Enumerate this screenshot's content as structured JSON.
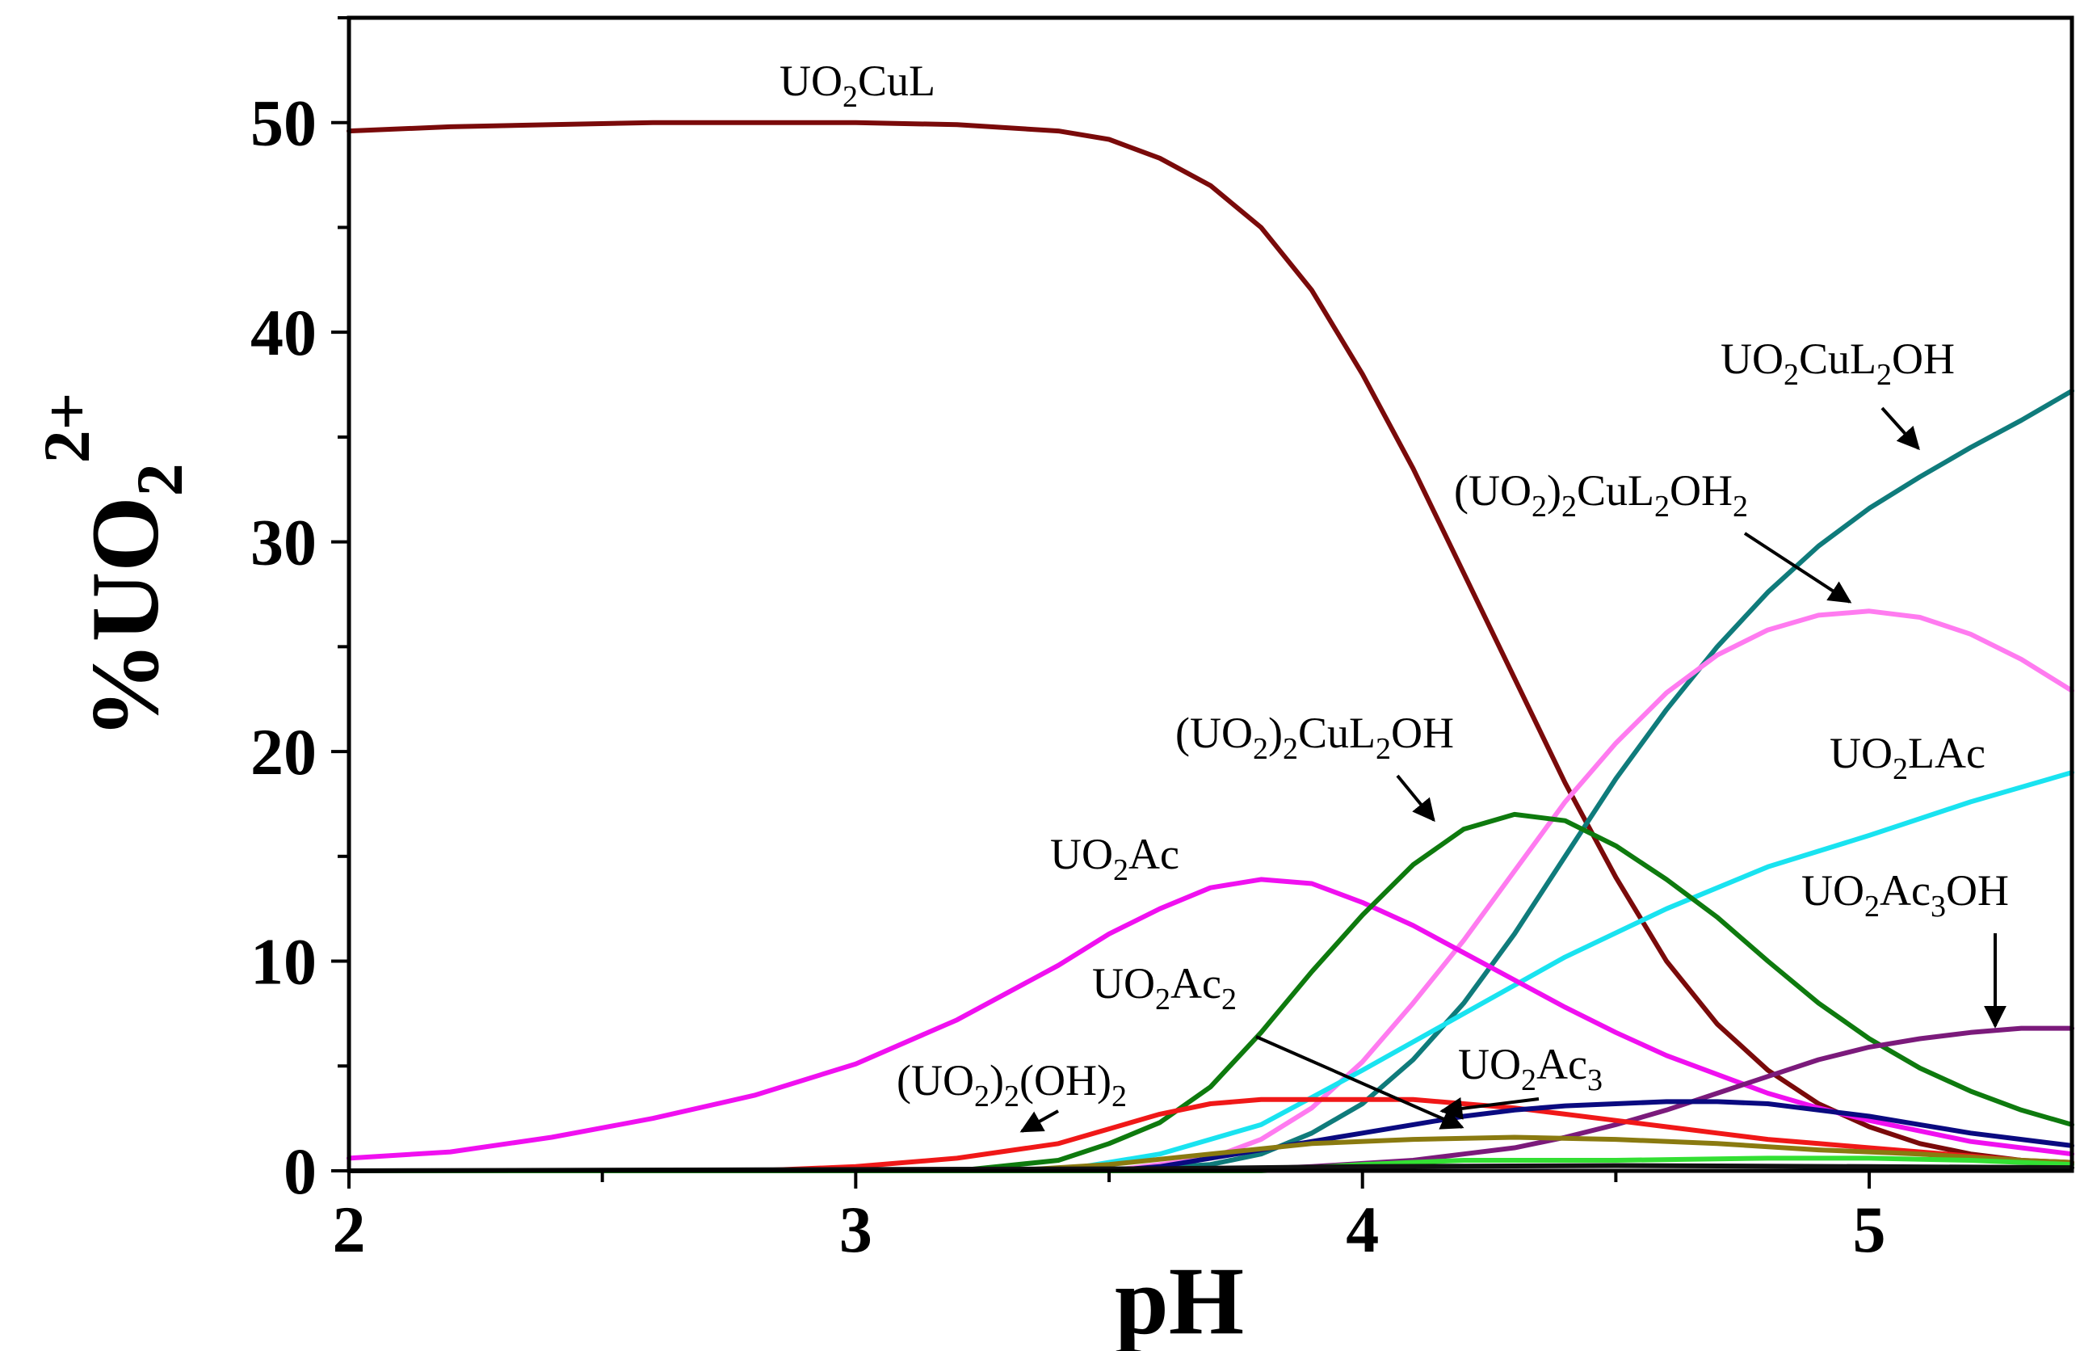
{
  "chart_data": {
    "type": "line",
    "xlabel": "pH",
    "ylabel": {
      "prefix": "%UO",
      "sub": "2",
      "sup": "2+"
    },
    "xlim": [
      2.0,
      5.4
    ],
    "ylim": [
      0,
      55
    ],
    "x_ticks": [
      2,
      3,
      4,
      5
    ],
    "y_ticks": [
      0,
      10,
      20,
      30,
      40,
      50
    ],
    "grid": false,
    "legend": "none",
    "series": [
      {
        "id": "uo2cul",
        "color": "#7a0a0a",
        "label": [
          [
            "UO",
            ""
          ],
          [
            "2",
            "sub"
          ],
          [
            "CuL",
            ""
          ]
        ],
        "points": [
          [
            2.0,
            49.6
          ],
          [
            2.2,
            49.8
          ],
          [
            2.4,
            49.9
          ],
          [
            2.6,
            50.0
          ],
          [
            2.8,
            50.0
          ],
          [
            3.0,
            50.0
          ],
          [
            3.2,
            49.9
          ],
          [
            3.4,
            49.6
          ],
          [
            3.5,
            49.2
          ],
          [
            3.6,
            48.3
          ],
          [
            3.7,
            47.0
          ],
          [
            3.8,
            45.0
          ],
          [
            3.9,
            42.0
          ],
          [
            4.0,
            38.0
          ],
          [
            4.1,
            33.5
          ],
          [
            4.2,
            28.5
          ],
          [
            4.3,
            23.5
          ],
          [
            4.4,
            18.5
          ],
          [
            4.5,
            14.0
          ],
          [
            4.6,
            10.0
          ],
          [
            4.7,
            7.0
          ],
          [
            4.8,
            4.8
          ],
          [
            4.9,
            3.2
          ],
          [
            5.0,
            2.1
          ],
          [
            5.1,
            1.3
          ],
          [
            5.2,
            0.8
          ],
          [
            5.3,
            0.5
          ],
          [
            5.4,
            0.3
          ]
        ]
      },
      {
        "id": "uo2cul2oh",
        "color": "#0f7b7b",
        "label": [
          [
            "UO",
            ""
          ],
          [
            "2",
            "sub"
          ],
          [
            "CuL",
            ""
          ],
          [
            "2",
            "sub"
          ],
          [
            "OH",
            ""
          ]
        ],
        "points": [
          [
            2.0,
            0.0
          ],
          [
            3.5,
            0.0
          ],
          [
            3.7,
            0.3
          ],
          [
            3.8,
            0.8
          ],
          [
            3.9,
            1.8
          ],
          [
            4.0,
            3.2
          ],
          [
            4.1,
            5.3
          ],
          [
            4.2,
            8.0
          ],
          [
            4.3,
            11.3
          ],
          [
            4.4,
            15.0
          ],
          [
            4.5,
            18.7
          ],
          [
            4.6,
            22.0
          ],
          [
            4.7,
            25.0
          ],
          [
            4.8,
            27.6
          ],
          [
            4.9,
            29.8
          ],
          [
            5.0,
            31.6
          ],
          [
            5.1,
            33.1
          ],
          [
            5.2,
            34.5
          ],
          [
            5.3,
            35.8
          ],
          [
            5.4,
            37.2
          ]
        ]
      },
      {
        "id": "uo22cul2oh2",
        "color": "#ff7bf0",
        "label": [
          [
            "(UO",
            ""
          ],
          [
            "2",
            "sub"
          ],
          [
            ")",
            ""
          ],
          [
            "2",
            "sub"
          ],
          [
            "CuL",
            ""
          ],
          [
            "2",
            "sub"
          ],
          [
            "OH",
            ""
          ],
          [
            "2",
            "sub"
          ]
        ],
        "points": [
          [
            2.0,
            0.0
          ],
          [
            3.5,
            0.0
          ],
          [
            3.7,
            0.6
          ],
          [
            3.8,
            1.5
          ],
          [
            3.9,
            3.0
          ],
          [
            4.0,
            5.2
          ],
          [
            4.1,
            8.0
          ],
          [
            4.2,
            11.0
          ],
          [
            4.3,
            14.3
          ],
          [
            4.4,
            17.6
          ],
          [
            4.5,
            20.4
          ],
          [
            4.6,
            22.8
          ],
          [
            4.7,
            24.6
          ],
          [
            4.8,
            25.8
          ],
          [
            4.9,
            26.5
          ],
          [
            5.0,
            26.7
          ],
          [
            5.1,
            26.4
          ],
          [
            5.2,
            25.6
          ],
          [
            5.3,
            24.4
          ],
          [
            5.4,
            22.9
          ]
        ]
      },
      {
        "id": "uo2lac",
        "color": "#19e3f0",
        "label": [
          [
            "UO",
            ""
          ],
          [
            "2",
            "sub"
          ],
          [
            "LAc",
            ""
          ]
        ],
        "points": [
          [
            2.0,
            0.0
          ],
          [
            3.4,
            0.0
          ],
          [
            3.6,
            0.8
          ],
          [
            3.8,
            2.2
          ],
          [
            4.0,
            4.8
          ],
          [
            4.2,
            7.5
          ],
          [
            4.4,
            10.2
          ],
          [
            4.6,
            12.5
          ],
          [
            4.8,
            14.5
          ],
          [
            5.0,
            16.0
          ],
          [
            5.2,
            17.6
          ],
          [
            5.4,
            19.0
          ]
        ]
      },
      {
        "id": "uo2ac",
        "color": "#f010f0",
        "label": [
          [
            "UO",
            ""
          ],
          [
            "2",
            "sub"
          ],
          [
            "Ac",
            ""
          ]
        ],
        "points": [
          [
            2.0,
            0.6
          ],
          [
            2.2,
            0.9
          ],
          [
            2.4,
            1.6
          ],
          [
            2.6,
            2.5
          ],
          [
            2.8,
            3.6
          ],
          [
            3.0,
            5.1
          ],
          [
            3.2,
            7.2
          ],
          [
            3.4,
            9.8
          ],
          [
            3.5,
            11.3
          ],
          [
            3.6,
            12.5
          ],
          [
            3.7,
            13.5
          ],
          [
            3.8,
            13.9
          ],
          [
            3.9,
            13.7
          ],
          [
            4.0,
            12.8
          ],
          [
            4.1,
            11.7
          ],
          [
            4.2,
            10.4
          ],
          [
            4.3,
            9.1
          ],
          [
            4.4,
            7.8
          ],
          [
            4.5,
            6.6
          ],
          [
            4.6,
            5.5
          ],
          [
            4.7,
            4.6
          ],
          [
            4.8,
            3.7
          ],
          [
            4.9,
            3.0
          ],
          [
            5.0,
            2.4
          ],
          [
            5.1,
            1.9
          ],
          [
            5.2,
            1.4
          ],
          [
            5.3,
            1.1
          ],
          [
            5.4,
            0.8
          ]
        ]
      },
      {
        "id": "uo22cul2oh",
        "color": "#0e7a0e",
        "label": [
          [
            "(UO",
            ""
          ],
          [
            "2",
            "sub"
          ],
          [
            ")",
            ""
          ],
          [
            "2",
            "sub"
          ],
          [
            "CuL",
            ""
          ],
          [
            "2",
            "sub"
          ],
          [
            "OH",
            ""
          ]
        ],
        "points": [
          [
            2.0,
            0.0
          ],
          [
            3.2,
            0.0
          ],
          [
            3.4,
            0.5
          ],
          [
            3.5,
            1.3
          ],
          [
            3.6,
            2.3
          ],
          [
            3.7,
            4.0
          ],
          [
            3.8,
            6.6
          ],
          [
            3.9,
            9.5
          ],
          [
            4.0,
            12.2
          ],
          [
            4.1,
            14.6
          ],
          [
            4.2,
            16.3
          ],
          [
            4.3,
            17.0
          ],
          [
            4.4,
            16.7
          ],
          [
            4.5,
            15.5
          ],
          [
            4.6,
            13.9
          ],
          [
            4.7,
            12.1
          ],
          [
            4.8,
            10.0
          ],
          [
            4.9,
            8.0
          ],
          [
            5.0,
            6.3
          ],
          [
            5.1,
            4.9
          ],
          [
            5.2,
            3.8
          ],
          [
            5.3,
            2.9
          ],
          [
            5.4,
            2.2
          ]
        ]
      },
      {
        "id": "uo2ac3oh",
        "color": "#7b1a7b",
        "label": [
          [
            "UO",
            ""
          ],
          [
            "2",
            "sub"
          ],
          [
            "Ac",
            ""
          ],
          [
            "3",
            "sub"
          ],
          [
            "OH",
            ""
          ]
        ],
        "points": [
          [
            2.0,
            0.0
          ],
          [
            3.7,
            0.0
          ],
          [
            3.9,
            0.2
          ],
          [
            4.0,
            0.35
          ],
          [
            4.1,
            0.5
          ],
          [
            4.2,
            0.8
          ],
          [
            4.3,
            1.1
          ],
          [
            4.4,
            1.6
          ],
          [
            4.5,
            2.2
          ],
          [
            4.6,
            2.9
          ],
          [
            4.7,
            3.7
          ],
          [
            4.8,
            4.5
          ],
          [
            4.9,
            5.3
          ],
          [
            5.0,
            5.9
          ],
          [
            5.1,
            6.3
          ],
          [
            5.2,
            6.6
          ],
          [
            5.3,
            6.8
          ],
          [
            5.4,
            6.8
          ]
        ]
      },
      {
        "id": "uo22oh2",
        "color": "#f01818",
        "label": [
          [
            "(UO",
            ""
          ],
          [
            "2",
            "sub"
          ],
          [
            ")",
            ""
          ],
          [
            "2",
            "sub"
          ],
          [
            "(OH)",
            ""
          ],
          [
            "2",
            "sub"
          ]
        ],
        "points": [
          [
            2.0,
            0.0
          ],
          [
            2.8,
            0.0
          ],
          [
            3.0,
            0.2
          ],
          [
            3.2,
            0.6
          ],
          [
            3.4,
            1.3
          ],
          [
            3.5,
            2.0
          ],
          [
            3.6,
            2.7
          ],
          [
            3.7,
            3.2
          ],
          [
            3.8,
            3.4
          ],
          [
            3.9,
            3.4
          ],
          [
            4.0,
            3.4
          ],
          [
            4.1,
            3.4
          ],
          [
            4.2,
            3.2
          ],
          [
            4.3,
            3.0
          ],
          [
            4.4,
            2.7
          ],
          [
            4.5,
            2.4
          ],
          [
            4.6,
            2.1
          ],
          [
            4.7,
            1.8
          ],
          [
            4.8,
            1.5
          ],
          [
            4.9,
            1.3
          ],
          [
            5.0,
            1.1
          ],
          [
            5.1,
            0.9
          ],
          [
            5.2,
            0.7
          ],
          [
            5.3,
            0.5
          ],
          [
            5.4,
            0.4
          ]
        ]
      },
      {
        "id": "uo2ac3",
        "color": "#0a0a80",
        "label": [
          [
            "UO",
            ""
          ],
          [
            "2",
            "sub"
          ],
          [
            "Ac",
            ""
          ],
          [
            "3",
            "sub"
          ]
        ],
        "points": [
          [
            2.0,
            0.0
          ],
          [
            3.5,
            0.0
          ],
          [
            3.6,
            0.2
          ],
          [
            3.7,
            0.6
          ],
          [
            3.8,
            1.0
          ],
          [
            3.9,
            1.4
          ],
          [
            4.0,
            1.8
          ],
          [
            4.1,
            2.2
          ],
          [
            4.2,
            2.6
          ],
          [
            4.3,
            2.9
          ],
          [
            4.4,
            3.1
          ],
          [
            4.5,
            3.2
          ],
          [
            4.6,
            3.3
          ],
          [
            4.7,
            3.3
          ],
          [
            4.8,
            3.2
          ],
          [
            4.9,
            2.9
          ],
          [
            5.0,
            2.6
          ],
          [
            5.1,
            2.2
          ],
          [
            5.2,
            1.8
          ],
          [
            5.3,
            1.5
          ],
          [
            5.4,
            1.2
          ]
        ]
      },
      {
        "id": "uo2ac2",
        "color": "#8a7a10",
        "label": [
          [
            "UO",
            ""
          ],
          [
            "2",
            "sub"
          ],
          [
            "Ac",
            ""
          ],
          [
            "2",
            "sub"
          ]
        ],
        "points": [
          [
            2.0,
            0.0
          ],
          [
            3.3,
            0.0
          ],
          [
            3.5,
            0.3
          ],
          [
            3.7,
            0.8
          ],
          [
            3.9,
            1.3
          ],
          [
            4.1,
            1.5
          ],
          [
            4.3,
            1.6
          ],
          [
            4.5,
            1.5
          ],
          [
            4.7,
            1.3
          ],
          [
            4.9,
            1.0
          ],
          [
            5.1,
            0.8
          ],
          [
            5.3,
            0.5
          ],
          [
            5.4,
            0.4
          ]
        ]
      },
      {
        "id": "minor-green",
        "color": "#33e033",
        "label": [],
        "points": [
          [
            2.0,
            0.0
          ],
          [
            3.8,
            0.0
          ],
          [
            4.0,
            0.3
          ],
          [
            4.2,
            0.5
          ],
          [
            4.5,
            0.5
          ],
          [
            4.8,
            0.6
          ],
          [
            5.0,
            0.6
          ],
          [
            5.2,
            0.5
          ],
          [
            5.4,
            0.3
          ]
        ]
      },
      {
        "id": "minor-black",
        "color": "#111111",
        "label": [],
        "points": [
          [
            2.0,
            0.0
          ],
          [
            3.6,
            0.1
          ],
          [
            4.0,
            0.2
          ],
          [
            4.5,
            0.25
          ],
          [
            5.0,
            0.2
          ],
          [
            5.4,
            0.15
          ]
        ]
      }
    ]
  }
}
